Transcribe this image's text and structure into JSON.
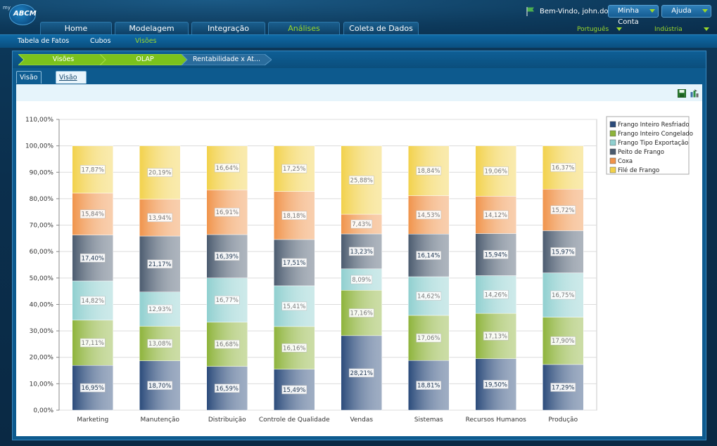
{
  "app": {
    "logo_prefix": "my",
    "logo_text": "ABCM",
    "welcome": "Bem-Vindo, john.doe",
    "my_account": "Minha Conta",
    "help": "Ajuda",
    "language": "Português",
    "industry": "Indústria"
  },
  "nav": {
    "tabs": [
      {
        "label": "Home"
      },
      {
        "label": "Modelagem"
      },
      {
        "label": "Integração"
      },
      {
        "label": "Análises",
        "active": true
      },
      {
        "label": "Coleta de Dados"
      }
    ]
  },
  "subnav": {
    "items": [
      {
        "label": "Tabela de Fatos"
      },
      {
        "label": "Cubos"
      },
      {
        "label": "Visões",
        "active": true
      }
    ]
  },
  "breadcrumb": [
    "Visões",
    "OLAP",
    "Rentabilidade x At..."
  ],
  "view_tabs": [
    {
      "label": "Visão Olap"
    },
    {
      "label": "Visão de Gráfico",
      "active": true
    }
  ],
  "toolbar": {
    "save_icon": "save-icon",
    "export_icon": "export-chart-icon"
  },
  "colors": {
    "accent_green": "#9bd82b",
    "series": [
      "#2a4a7a",
      "#8db33a",
      "#8fcfcf",
      "#4a5a6e",
      "#f0934a",
      "#f2d14a"
    ]
  },
  "chart_data": {
    "type": "bar",
    "stacked": true,
    "categories": [
      "Marketing",
      "Manutenção",
      "Distribuição",
      "Controle de Qualidade",
      "Vendas",
      "Sistemas",
      "Recursos Humanos",
      "Produção"
    ],
    "series": [
      {
        "name": "Frango Inteiro Resfriado",
        "values": [
          16.95,
          18.7,
          16.59,
          15.49,
          28.21,
          18.81,
          19.5,
          17.29
        ]
      },
      {
        "name": "Frango Inteiro Congelado",
        "values": [
          17.11,
          13.08,
          16.68,
          16.16,
          17.16,
          17.06,
          17.13,
          17.9
        ]
      },
      {
        "name": "Frango Tipo Exportação",
        "values": [
          14.82,
          12.93,
          16.77,
          15.41,
          8.09,
          14.62,
          14.26,
          16.75
        ]
      },
      {
        "name": "Peito de Frango",
        "values": [
          17.4,
          21.17,
          16.39,
          17.51,
          13.23,
          16.14,
          15.94,
          15.97
        ]
      },
      {
        "name": "Coxa",
        "values": [
          15.84,
          13.94,
          16.91,
          18.18,
          7.43,
          14.53,
          14.12,
          15.72
        ]
      },
      {
        "name": "Filé de Frango",
        "values": [
          17.87,
          20.19,
          16.64,
          17.25,
          25.88,
          18.84,
          19.06,
          16.37
        ]
      }
    ],
    "yticks": [
      "0,00%",
      "10,00%",
      "20,00%",
      "30,00%",
      "40,00%",
      "50,00%",
      "60,00%",
      "70,00%",
      "80,00%",
      "90,00%",
      "100,00%",
      "110,00%"
    ],
    "ylim": [
      0,
      110
    ],
    "grid": true,
    "legend_position": "top-right"
  }
}
